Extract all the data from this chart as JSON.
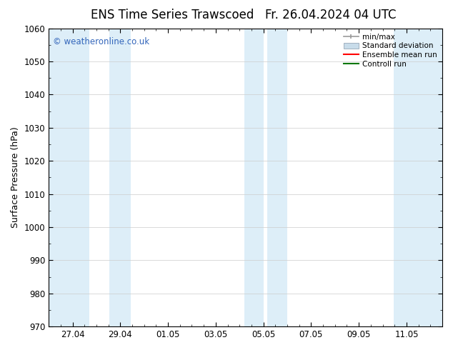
{
  "title_left": "ENS Time Series Trawscoed",
  "title_right": "Fr. 26.04.2024 04 UTC",
  "ylabel": "Surface Pressure (hPa)",
  "ylim": [
    970,
    1060
  ],
  "yticks": [
    970,
    980,
    990,
    1000,
    1010,
    1020,
    1030,
    1040,
    1050,
    1060
  ],
  "band_color": "#ddeef8",
  "background_color": "#ffffff",
  "plot_bg_color": "#ffffff",
  "watermark_text": "© weatheronline.co.uk",
  "watermark_color": "#3366bb",
  "legend_entries": [
    "min/max",
    "Standard deviation",
    "Ensemble mean run",
    "Controll run"
  ],
  "minmax_color": "#999999",
  "std_color": "#c8dcea",
  "mean_color": "#ff0000",
  "control_color": "#007700",
  "title_fontsize": 12,
  "axis_fontsize": 9,
  "tick_fontsize": 8.5
}
